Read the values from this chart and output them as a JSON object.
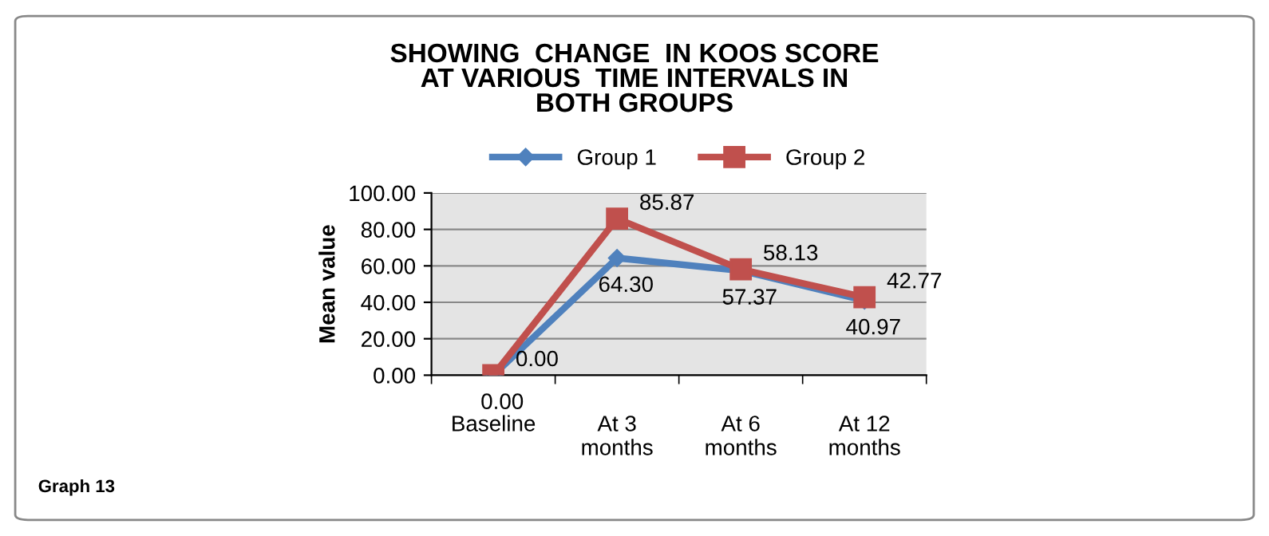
{
  "chart_data": {
    "type": "line",
    "title": "SHOWING  CHANGE  IN KOOS SCORE\nAT VARIOUS  TIME INTERVALS IN\nBOTH GROUPS",
    "ylabel": "Mean value",
    "categories": [
      "Baseline",
      "At 3\nmonths",
      "At 6\nmonths",
      "At 12\nmonths"
    ],
    "series": [
      {
        "name": "Group 1",
        "color": "#4f81bd",
        "marker": "diamond",
        "values": [
          0.0,
          64.3,
          57.37,
          40.97
        ],
        "value_labels": [
          "0.00",
          "64.30",
          "57.37",
          "40.97"
        ]
      },
      {
        "name": "Group 2",
        "color": "#c0504d",
        "marker": "square",
        "values": [
          0.0,
          85.87,
          58.13,
          42.77
        ],
        "value_labels": [
          "0.00",
          "85.87",
          "58.13",
          "42.77"
        ]
      }
    ],
    "ylim": [
      0,
      100
    ],
    "yticks": [
      {
        "value": 0,
        "label": "0.00"
      },
      {
        "value": 20,
        "label": "20.00"
      },
      {
        "value": 40,
        "label": "40.00"
      },
      {
        "value": 60,
        "label": "60.00"
      },
      {
        "value": 80,
        "label": "80.00"
      },
      {
        "value": 100,
        "label": "100.00"
      }
    ],
    "grid": "y",
    "legend": "top",
    "annotations": [
      "Graph 13"
    ]
  }
}
